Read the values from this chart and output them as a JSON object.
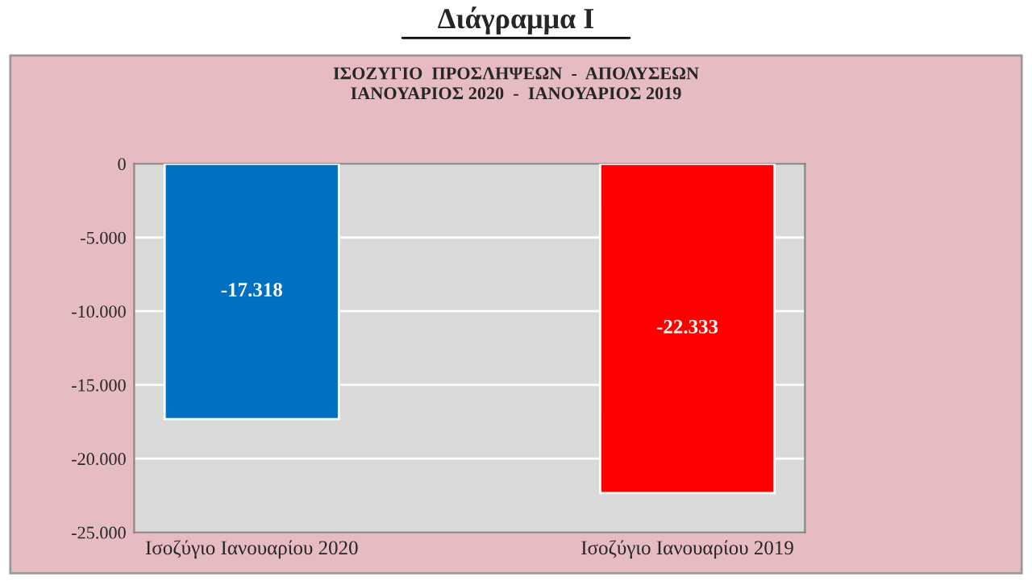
{
  "chart_data": {
    "type": "bar",
    "title": "Διάγραμμα Ι",
    "subtitle": "ΙΣΟΖΥΓΙΟ  ΠΡΟΣΛΗΨΕΩΝ  -  ΑΠΟΛΥΣΕΩΝ\nΙΑΝΟΥΑΡΙΟΣ 2020  -  ΙΑΝΟΥΑΡΙΟΣ 2019",
    "categories": [
      "Ισοζύγιο Ιανουαρίου 2020",
      "Ισοζύγιο Ιανουαρίου 2019"
    ],
    "values": [
      -17318,
      -22333
    ],
    "colors": [
      "#0070c0",
      "#ff0000"
    ],
    "value_labels": [
      "-17.318",
      "-22.333"
    ],
    "ylim": [
      -25000,
      0
    ],
    "yticks": [
      {
        "value": 0,
        "label": "0"
      },
      {
        "value": -5000,
        "label": "-5.000"
      },
      {
        "value": -10000,
        "label": "-10.000"
      },
      {
        "value": -15000,
        "label": "-15.000"
      },
      {
        "value": -20000,
        "label": "-20.000"
      },
      {
        "value": -25000,
        "label": "-25.000"
      }
    ],
    "grid": "y",
    "legend": false
  }
}
